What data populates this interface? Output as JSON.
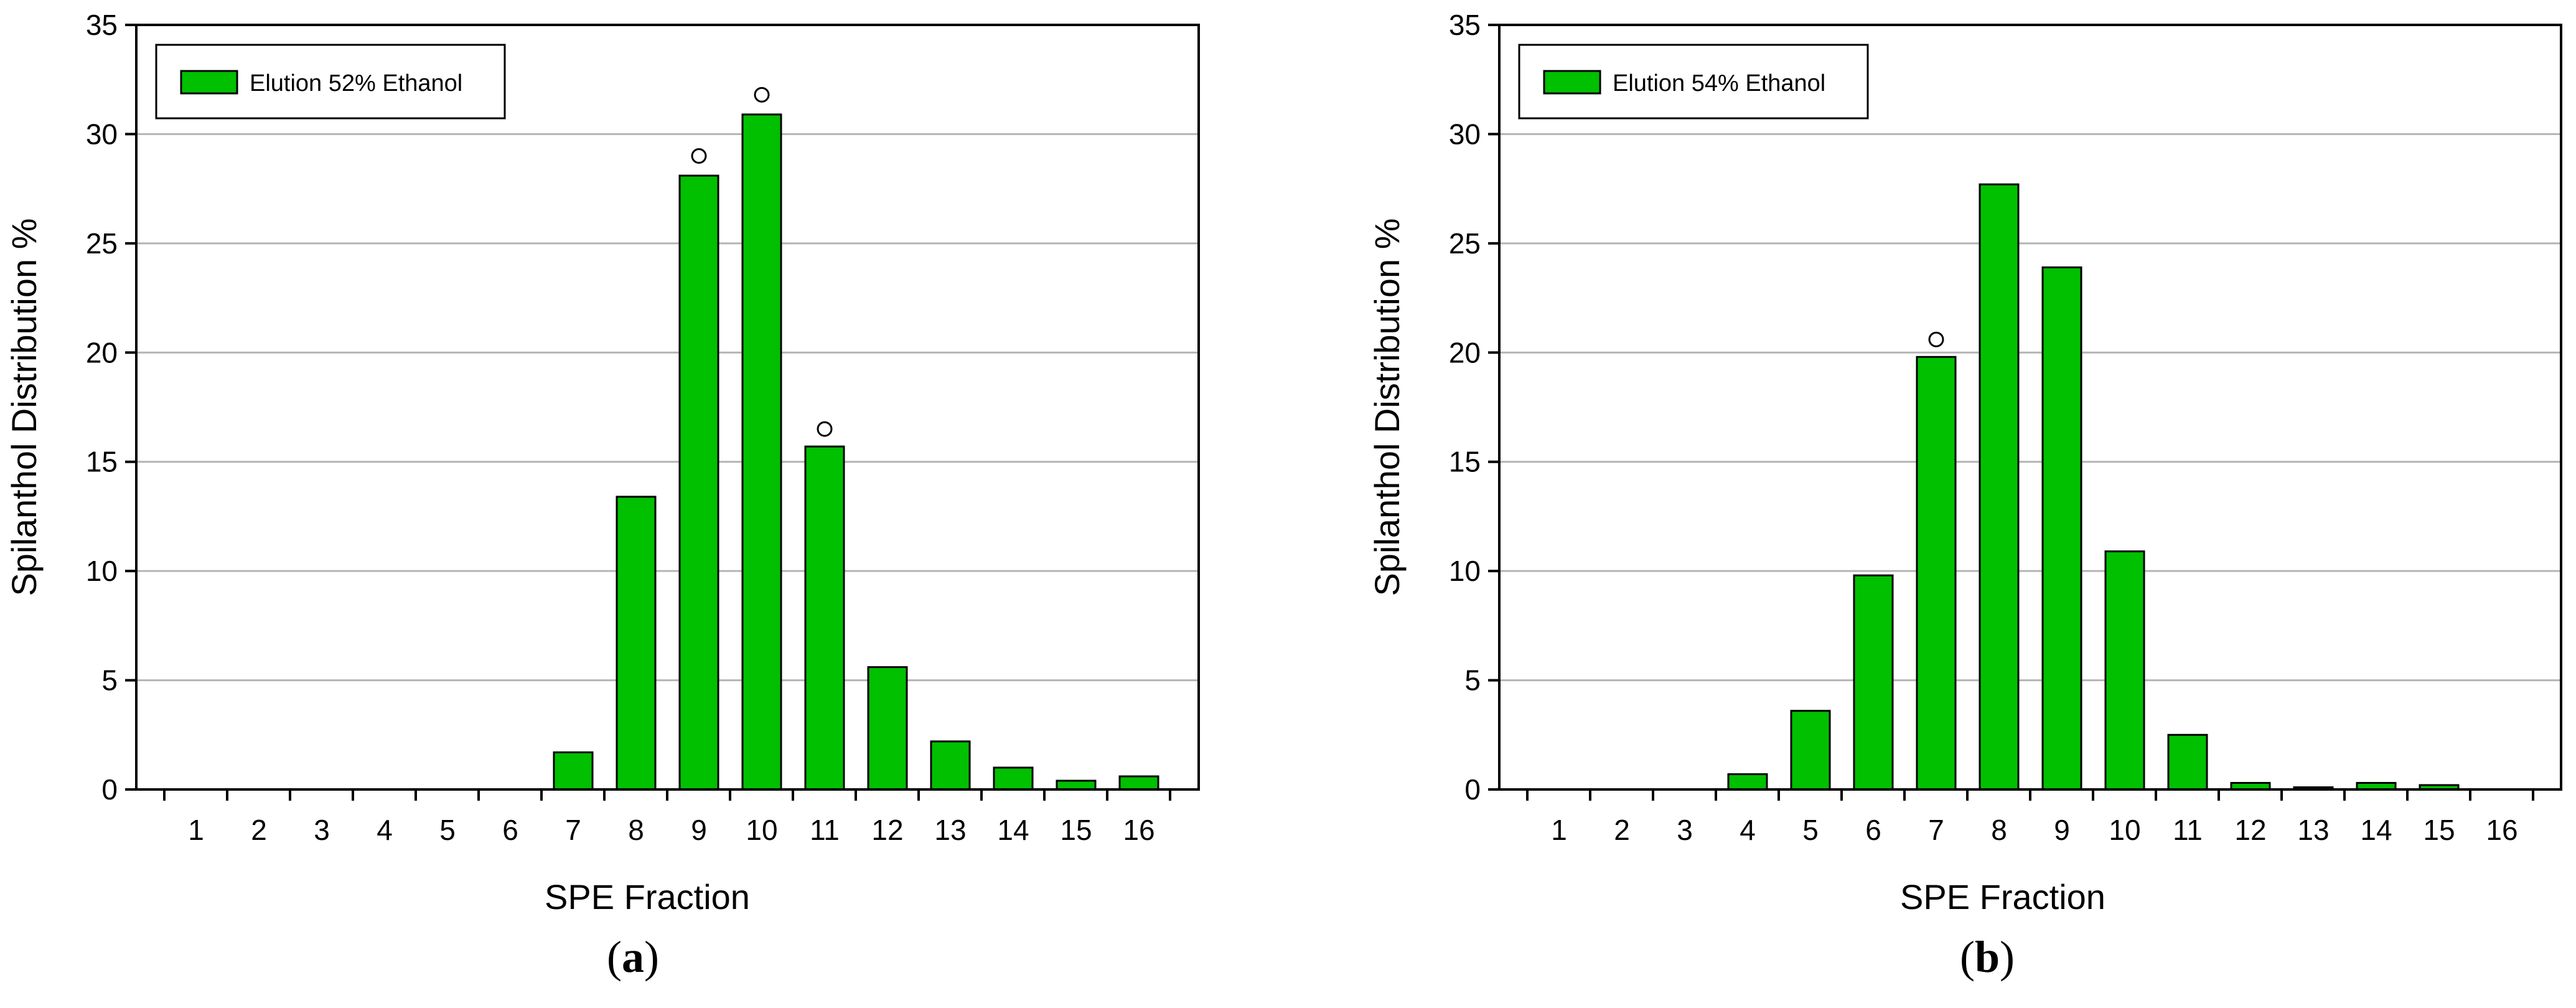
{
  "chart_data": [
    {
      "type": "bar",
      "title": "",
      "xlabel": "SPE Fraction",
      "ylabel": "Spilanthol Distribution %",
      "ylim": [
        0,
        35
      ],
      "yticks": [
        0,
        5,
        10,
        15,
        20,
        25,
        30,
        35
      ],
      "grid": "horizontal",
      "legend_position": "top-left",
      "bar_color": "#00c000",
      "categories": [
        "1",
        "2",
        "3",
        "4",
        "5",
        "6",
        "7",
        "8",
        "9",
        "10",
        "11",
        "12",
        "13",
        "14",
        "15",
        "16"
      ],
      "series": [
        {
          "name": "Elution 52% Ethanol",
          "values": [
            0,
            0,
            0,
            0,
            0,
            0,
            1.7,
            13.4,
            28.1,
            30.9,
            15.7,
            5.6,
            2.2,
            1.0,
            0.4,
            0.6
          ]
        }
      ],
      "outlier_markers": [
        {
          "category": "9",
          "value": 29.0
        },
        {
          "category": "10",
          "value": 31.8
        },
        {
          "category": "11",
          "value": 16.5
        }
      ],
      "caption_letter": "a"
    },
    {
      "type": "bar",
      "title": "",
      "xlabel": "SPE Fraction",
      "ylabel": "Spilanthol Distribution %",
      "ylim": [
        0,
        35
      ],
      "yticks": [
        0,
        5,
        10,
        15,
        20,
        25,
        30,
        35
      ],
      "grid": "horizontal",
      "legend_position": "top-left",
      "bar_color": "#00c000",
      "categories": [
        "1",
        "2",
        "3",
        "4",
        "5",
        "6",
        "7",
        "8",
        "9",
        "10",
        "11",
        "12",
        "13",
        "14",
        "15",
        "16"
      ],
      "series": [
        {
          "name": "Elution 54% Ethanol",
          "values": [
            0,
            0,
            0,
            0.7,
            3.6,
            9.8,
            19.8,
            27.7,
            23.9,
            10.9,
            2.5,
            0.3,
            0.1,
            0.3,
            0.2,
            0
          ]
        }
      ],
      "outlier_markers": [
        {
          "category": "7",
          "value": 20.6
        }
      ],
      "caption_letter": "b"
    }
  ]
}
